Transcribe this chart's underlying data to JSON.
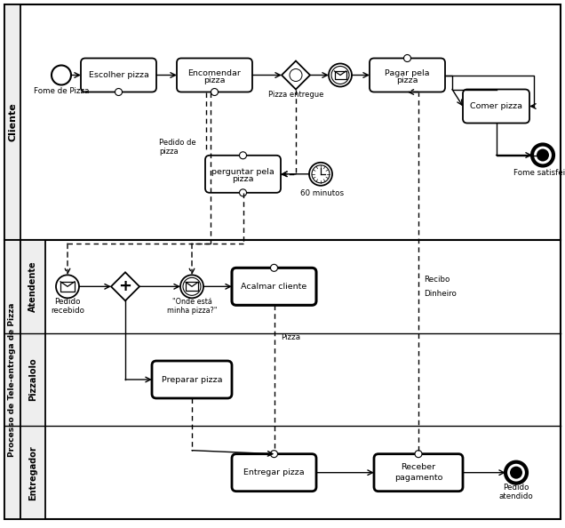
{
  "bg_color": "#ffffff",
  "pool1_label": "Cliente",
  "pool2_label": "Processo de Tele-entrega de Pizza",
  "lane_labels": [
    "Atendente",
    "Pizzalolo",
    "Entregador"
  ],
  "fig_width": 6.36,
  "fig_height": 5.94,
  "dpi": 100
}
